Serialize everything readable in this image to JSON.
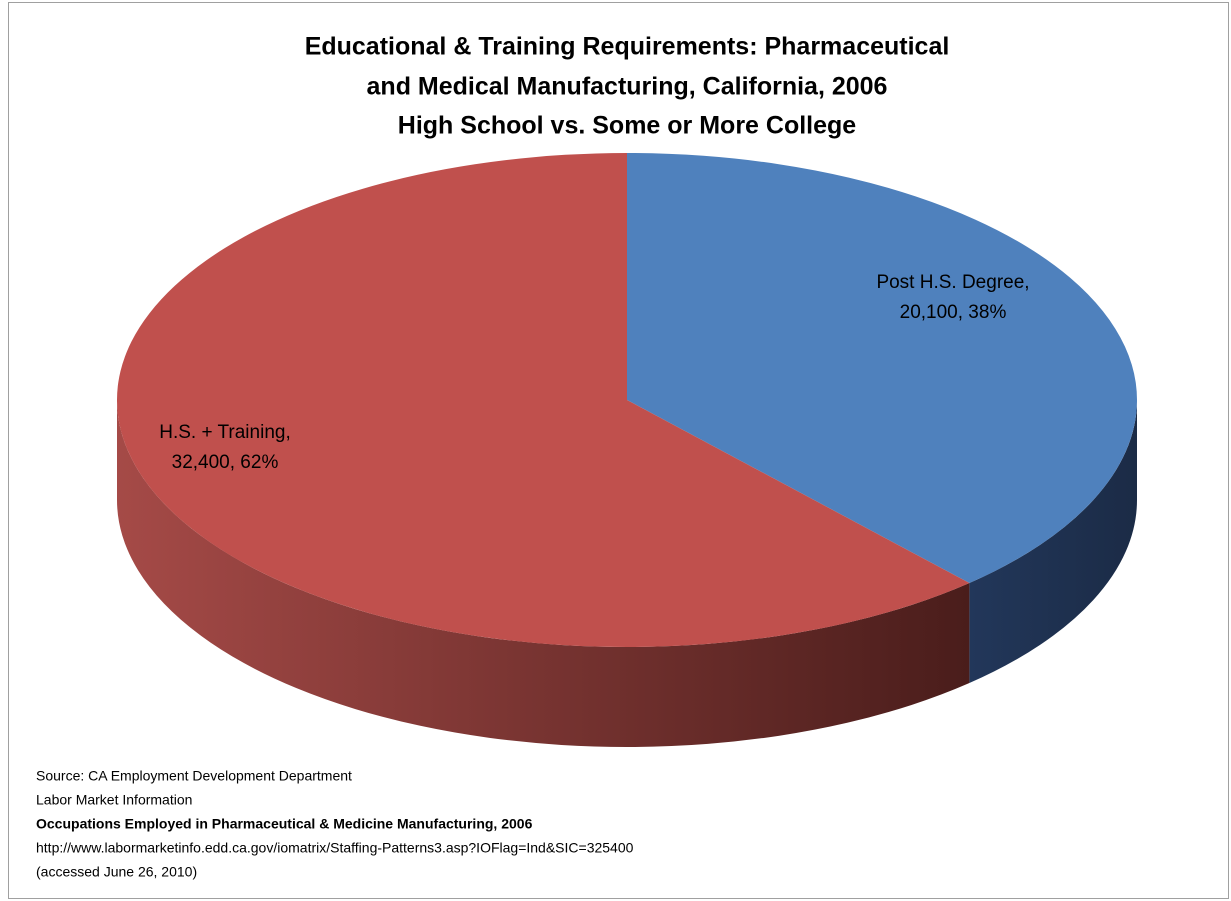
{
  "chart_data": {
    "type": "pie",
    "title": [
      "Educational & Training Requirements:  Pharmaceutical",
      "and Medical Manufacturing, California, 2006"
    ],
    "subtitle": "High School vs. Some or More College",
    "values": [
      20100,
      32400
    ],
    "value_labels": [
      [
        "Post H.S. Degree,",
        "20,100, 38%"
      ],
      [
        "H.S. + Training,",
        "32,400, 62%"
      ]
    ],
    "colors": [
      "#4f81bd",
      "#c0504d"
    ],
    "source": [
      "Source: CA Employment Development Department",
      "Labor Market Information",
      "Occupations Employed in Pharmaceutical & Medicine Manufacturing, 2006",
      "http://www.labormarketinfo.edd.ca.gov/iomatrix/Staffing-Patterns3.asp?IOFlag=Ind&SIC=325400",
      "(accessed June 26, 2010)"
    ]
  }
}
